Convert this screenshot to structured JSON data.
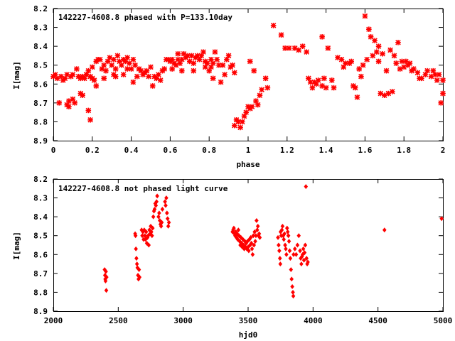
{
  "chart_data": [
    {
      "type": "scatter",
      "title": "142227-4608.8 phased with P=133.10day",
      "xlabel": "phase",
      "ylabel": "I[mag]",
      "xlim": [
        0,
        2
      ],
      "ylim": [
        8.9,
        8.2
      ],
      "y_inverted": true,
      "xticks": [
        "0",
        "0.2",
        "0.4",
        "0.6",
        "0.8",
        "1",
        "1.2",
        "1.4",
        "1.6",
        "1.8",
        "2"
      ],
      "yticks": [
        "8.2",
        "8.3",
        "8.4",
        "8.5",
        "8.6",
        "8.7",
        "8.8",
        "8.9"
      ],
      "color": "#ff0000",
      "grid": false,
      "legend": "none",
      "points": [
        [
          0.0,
          8.56
        ],
        [
          0.01,
          8.55
        ],
        [
          0.02,
          8.57
        ],
        [
          0.03,
          8.7
        ],
        [
          0.04,
          8.56
        ],
        [
          0.05,
          8.58
        ],
        [
          0.06,
          8.57
        ],
        [
          0.07,
          8.55
        ],
        [
          0.07,
          8.71
        ],
        [
          0.08,
          8.69
        ],
        [
          0.08,
          8.72
        ],
        [
          0.09,
          8.56
        ],
        [
          0.1,
          8.55
        ],
        [
          0.1,
          8.68
        ],
        [
          0.11,
          8.7
        ],
        [
          0.12,
          8.52
        ],
        [
          0.13,
          8.56
        ],
        [
          0.14,
          8.57
        ],
        [
          0.14,
          8.65
        ],
        [
          0.15,
          8.56
        ],
        [
          0.15,
          8.66
        ],
        [
          0.16,
          8.57
        ],
        [
          0.17,
          8.55
        ],
        [
          0.17,
          8.55
        ],
        [
          0.18,
          8.53
        ],
        [
          0.18,
          8.74
        ],
        [
          0.19,
          8.56
        ],
        [
          0.19,
          8.79
        ],
        [
          0.2,
          8.51
        ],
        [
          0.2,
          8.57
        ],
        [
          0.21,
          8.58
        ],
        [
          0.22,
          8.48
        ],
        [
          0.22,
          8.61
        ],
        [
          0.23,
          8.47
        ],
        [
          0.24,
          8.47
        ],
        [
          0.25,
          8.52
        ],
        [
          0.26,
          8.5
        ],
        [
          0.26,
          8.57
        ],
        [
          0.27,
          8.53
        ],
        [
          0.28,
          8.48
        ],
        [
          0.29,
          8.46
        ],
        [
          0.3,
          8.5
        ],
        [
          0.31,
          8.47
        ],
        [
          0.31,
          8.55
        ],
        [
          0.32,
          8.56
        ],
        [
          0.32,
          8.52
        ],
        [
          0.33,
          8.45
        ],
        [
          0.34,
          8.48
        ],
        [
          0.35,
          8.5
        ],
        [
          0.36,
          8.47
        ],
        [
          0.36,
          8.55
        ],
        [
          0.37,
          8.48
        ],
        [
          0.38,
          8.46
        ],
        [
          0.38,
          8.52
        ],
        [
          0.39,
          8.49
        ],
        [
          0.4,
          8.52
        ],
        [
          0.41,
          8.47
        ],
        [
          0.41,
          8.59
        ],
        [
          0.42,
          8.5
        ],
        [
          0.43,
          8.56
        ],
        [
          0.44,
          8.52
        ],
        [
          0.45,
          8.53
        ],
        [
          0.46,
          8.55
        ],
        [
          0.47,
          8.54
        ],
        [
          0.48,
          8.53
        ],
        [
          0.49,
          8.56
        ],
        [
          0.5,
          8.51
        ],
        [
          0.51,
          8.61
        ],
        [
          0.52,
          8.56
        ],
        [
          0.53,
          8.57
        ],
        [
          0.54,
          8.55
        ],
        [
          0.55,
          8.58
        ],
        [
          0.56,
          8.53
        ],
        [
          0.57,
          8.52
        ],
        [
          0.58,
          8.47
        ],
        [
          0.59,
          8.47
        ],
        [
          0.6,
          8.48
        ],
        [
          0.61,
          8.47
        ],
        [
          0.61,
          8.52
        ],
        [
          0.62,
          8.49
        ],
        [
          0.63,
          8.5
        ],
        [
          0.64,
          8.44
        ],
        [
          0.64,
          8.47
        ],
        [
          0.65,
          8.49
        ],
        [
          0.66,
          8.47
        ],
        [
          0.66,
          8.53
        ],
        [
          0.67,
          8.44
        ],
        [
          0.68,
          8.46
        ],
        [
          0.69,
          8.45
        ],
        [
          0.7,
          8.48
        ],
        [
          0.71,
          8.45
        ],
        [
          0.72,
          8.49
        ],
        [
          0.72,
          8.53
        ],
        [
          0.73,
          8.46
        ],
        [
          0.74,
          8.45
        ],
        [
          0.75,
          8.47
        ],
        [
          0.76,
          8.45
        ],
        [
          0.77,
          8.43
        ],
        [
          0.78,
          8.48
        ],
        [
          0.78,
          8.51
        ],
        [
          0.79,
          8.49
        ],
        [
          0.8,
          8.53
        ],
        [
          0.81,
          8.47
        ],
        [
          0.81,
          8.51
        ],
        [
          0.82,
          8.49
        ],
        [
          0.82,
          8.57
        ],
        [
          0.83,
          8.43
        ],
        [
          0.84,
          8.47
        ],
        [
          0.85,
          8.5
        ],
        [
          0.86,
          8.59
        ],
        [
          0.87,
          8.5
        ],
        [
          0.88,
          8.55
        ],
        [
          0.89,
          8.47
        ],
        [
          0.9,
          8.45
        ],
        [
          0.91,
          8.51
        ],
        [
          0.92,
          8.5
        ],
        [
          0.93,
          8.54
        ],
        [
          0.93,
          8.82
        ],
        [
          0.94,
          8.79
        ],
        [
          0.95,
          8.8
        ],
        [
          0.96,
          8.83
        ],
        [
          0.97,
          8.8
        ],
        [
          0.98,
          8.77
        ],
        [
          0.99,
          8.75
        ],
        [
          1.0,
          8.72
        ],
        [
          1.01,
          8.48
        ],
        [
          1.01,
          8.73
        ],
        [
          1.02,
          8.72
        ],
        [
          1.03,
          8.53
        ],
        [
          1.04,
          8.69
        ],
        [
          1.05,
          8.71
        ],
        [
          1.06,
          8.66
        ],
        [
          1.07,
          8.63
        ],
        [
          1.09,
          8.57
        ],
        [
          1.1,
          8.62
        ],
        [
          1.13,
          8.29
        ],
        [
          1.17,
          8.34
        ],
        [
          1.19,
          8.41
        ],
        [
          1.21,
          8.41
        ],
        [
          1.24,
          8.41
        ],
        [
          1.26,
          8.42
        ],
        [
          1.28,
          8.4
        ],
        [
          1.3,
          8.43
        ],
        [
          1.31,
          8.57
        ],
        [
          1.32,
          8.59
        ],
        [
          1.33,
          8.62
        ],
        [
          1.34,
          8.59
        ],
        [
          1.35,
          8.6
        ],
        [
          1.36,
          8.58
        ],
        [
          1.38,
          8.61
        ],
        [
          1.38,
          8.35
        ],
        [
          1.39,
          8.57
        ],
        [
          1.4,
          8.62
        ],
        [
          1.41,
          8.41
        ],
        [
          1.43,
          8.58
        ],
        [
          1.44,
          8.62
        ],
        [
          1.46,
          8.46
        ],
        [
          1.48,
          8.47
        ],
        [
          1.49,
          8.51
        ],
        [
          1.5,
          8.49
        ],
        [
          1.52,
          8.49
        ],
        [
          1.53,
          8.48
        ],
        [
          1.54,
          8.61
        ],
        [
          1.55,
          8.62
        ],
        [
          1.56,
          8.67
        ],
        [
          1.57,
          8.52
        ],
        [
          1.58,
          8.56
        ],
        [
          1.59,
          8.5
        ],
        [
          1.6,
          8.24
        ],
        [
          1.61,
          8.47
        ],
        [
          1.62,
          8.31
        ],
        [
          1.63,
          8.35
        ],
        [
          1.64,
          8.45
        ],
        [
          1.65,
          8.37
        ],
        [
          1.66,
          8.43
        ],
        [
          1.67,
          8.4
        ],
        [
          1.67,
          8.48
        ],
        [
          1.68,
          8.65
        ],
        [
          1.69,
          8.44
        ],
        [
          1.7,
          8.66
        ],
        [
          1.71,
          8.53
        ],
        [
          1.72,
          8.65
        ],
        [
          1.73,
          8.42
        ],
        [
          1.74,
          8.64
        ],
        [
          1.75,
          8.45
        ],
        [
          1.76,
          8.49
        ],
        [
          1.77,
          8.38
        ],
        [
          1.78,
          8.52
        ],
        [
          1.79,
          8.48
        ],
        [
          1.8,
          8.51
        ],
        [
          1.81,
          8.48
        ],
        [
          1.82,
          8.5
        ],
        [
          1.83,
          8.49
        ],
        [
          1.84,
          8.53
        ],
        [
          1.85,
          8.52
        ],
        [
          1.87,
          8.54
        ],
        [
          1.88,
          8.57
        ],
        [
          1.89,
          8.57
        ],
        [
          1.91,
          8.55
        ],
        [
          1.92,
          8.53
        ],
        [
          1.94,
          8.56
        ],
        [
          1.95,
          8.53
        ],
        [
          1.96,
          8.55
        ],
        [
          1.97,
          8.58
        ],
        [
          1.98,
          8.55
        ],
        [
          1.99,
          8.7
        ],
        [
          2.0,
          8.58
        ],
        [
          2.0,
          8.65
        ]
      ]
    },
    {
      "type": "scatter",
      "title": "142227-4608.8 not phased light curve",
      "xlabel": "hjd0",
      "ylabel": "I[mag]",
      "xlim": [
        2000,
        5000
      ],
      "ylim": [
        8.9,
        8.2
      ],
      "y_inverted": true,
      "xticks": [
        "2000",
        "2500",
        "3000",
        "3500",
        "4000",
        "4500",
        "5000"
      ],
      "yticks": [
        "8.2",
        "8.3",
        "8.4",
        "8.5",
        "8.6",
        "8.7",
        "8.8",
        "8.9"
      ],
      "color": "#ff0000",
      "grid": false,
      "legend": "none",
      "points": [
        [
          2395,
          8.68
        ],
        [
          2398,
          8.71
        ],
        [
          2400,
          8.73
        ],
        [
          2402,
          8.74
        ],
        [
          2405,
          8.69
        ],
        [
          2408,
          8.79
        ],
        [
          2410,
          8.72
        ],
        [
          2630,
          8.49
        ],
        [
          2633,
          8.5
        ],
        [
          2636,
          8.57
        ],
        [
          2640,
          8.62
        ],
        [
          2644,
          8.65
        ],
        [
          2648,
          8.67
        ],
        [
          2652,
          8.71
        ],
        [
          2656,
          8.73
        ],
        [
          2660,
          8.68
        ],
        [
          2664,
          8.72
        ],
        [
          2680,
          8.47
        ],
        [
          2685,
          8.5
        ],
        [
          2690,
          8.48
        ],
        [
          2695,
          8.52
        ],
        [
          2700,
          8.47
        ],
        [
          2705,
          8.5
        ],
        [
          2710,
          8.52
        ],
        [
          2715,
          8.48
        ],
        [
          2720,
          8.54
        ],
        [
          2725,
          8.51
        ],
        [
          2730,
          8.5
        ],
        [
          2735,
          8.55
        ],
        [
          2740,
          8.47
        ],
        [
          2745,
          8.49
        ],
        [
          2750,
          8.45
        ],
        [
          2755,
          8.48
        ],
        [
          2760,
          8.5
        ],
        [
          2765,
          8.46
        ],
        [
          2770,
          8.4
        ],
        [
          2775,
          8.37
        ],
        [
          2780,
          8.36
        ],
        [
          2785,
          8.33
        ],
        [
          2790,
          8.34
        ],
        [
          2795,
          8.32
        ],
        [
          2800,
          8.29
        ],
        [
          2810,
          8.4
        ],
        [
          2815,
          8.38
        ],
        [
          2820,
          8.42
        ],
        [
          2825,
          8.44
        ],
        [
          2830,
          8.45
        ],
        [
          2835,
          8.43
        ],
        [
          2840,
          8.36
        ],
        [
          2860,
          8.32
        ],
        [
          2865,
          8.34
        ],
        [
          2870,
          8.3
        ],
        [
          2875,
          8.38
        ],
        [
          2880,
          8.41
        ],
        [
          2885,
          8.45
        ],
        [
          2890,
          8.43
        ],
        [
          3380,
          8.48
        ],
        [
          3385,
          8.47
        ],
        [
          3390,
          8.46
        ],
        [
          3395,
          8.49
        ],
        [
          3400,
          8.5
        ],
        [
          3405,
          8.48
        ],
        [
          3410,
          8.51
        ],
        [
          3415,
          8.49
        ],
        [
          3420,
          8.52
        ],
        [
          3425,
          8.47
        ],
        [
          3430,
          8.5
        ],
        [
          3435,
          8.53
        ],
        [
          3440,
          8.55
        ],
        [
          3445,
          8.51
        ],
        [
          3450,
          8.54
        ],
        [
          3455,
          8.56
        ],
        [
          3460,
          8.52
        ],
        [
          3465,
          8.55
        ],
        [
          3470,
          8.57
        ],
        [
          3475,
          8.53
        ],
        [
          3480,
          8.56
        ],
        [
          3485,
          8.54
        ],
        [
          3490,
          8.57
        ],
        [
          3495,
          8.53
        ],
        [
          3500,
          8.56
        ],
        [
          3505,
          8.58
        ],
        [
          3510,
          8.52
        ],
        [
          3515,
          8.55
        ],
        [
          3520,
          8.51
        ],
        [
          3525,
          8.54
        ],
        [
          3530,
          8.57
        ],
        [
          3535,
          8.6
        ],
        [
          3540,
          8.5
        ],
        [
          3545,
          8.55
        ],
        [
          3550,
          8.48
        ],
        [
          3555,
          8.53
        ],
        [
          3560,
          8.5
        ],
        [
          3565,
          8.42
        ],
        [
          3570,
          8.47
        ],
        [
          3575,
          8.45
        ],
        [
          3580,
          8.5
        ],
        [
          3585,
          8.49
        ],
        [
          3590,
          8.51
        ],
        [
          3730,
          8.51
        ],
        [
          3735,
          8.55
        ],
        [
          3740,
          8.58
        ],
        [
          3745,
          8.62
        ],
        [
          3748,
          8.65
        ],
        [
          3750,
          8.48
        ],
        [
          3755,
          8.5
        ],
        [
          3760,
          8.47
        ],
        [
          3765,
          8.45
        ],
        [
          3770,
          8.5
        ],
        [
          3775,
          8.52
        ],
        [
          3780,
          8.49
        ],
        [
          3785,
          8.55
        ],
        [
          3790,
          8.57
        ],
        [
          3795,
          8.6
        ],
        [
          3800,
          8.46
        ],
        [
          3805,
          8.48
        ],
        [
          3810,
          8.5
        ],
        [
          3815,
          8.53
        ],
        [
          3820,
          8.58
        ],
        [
          3825,
          8.62
        ],
        [
          3830,
          8.68
        ],
        [
          3835,
          8.73
        ],
        [
          3840,
          8.77
        ],
        [
          3845,
          8.8
        ],
        [
          3848,
          8.82
        ],
        [
          3850,
          8.6
        ],
        [
          3860,
          8.57
        ],
        [
          3870,
          8.6
        ],
        [
          3880,
          8.55
        ],
        [
          3890,
          8.5
        ],
        [
          3900,
          8.58
        ],
        [
          3905,
          8.62
        ],
        [
          3910,
          8.65
        ],
        [
          3915,
          8.61
        ],
        [
          3920,
          8.6
        ],
        [
          3925,
          8.57
        ],
        [
          3930,
          8.63
        ],
        [
          3935,
          8.59
        ],
        [
          3940,
          8.55
        ],
        [
          3945,
          8.24
        ],
        [
          3950,
          8.62
        ],
        [
          3955,
          8.65
        ],
        [
          3960,
          8.64
        ],
        [
          4550,
          8.47
        ],
        [
          4990,
          8.41
        ]
      ]
    }
  ]
}
